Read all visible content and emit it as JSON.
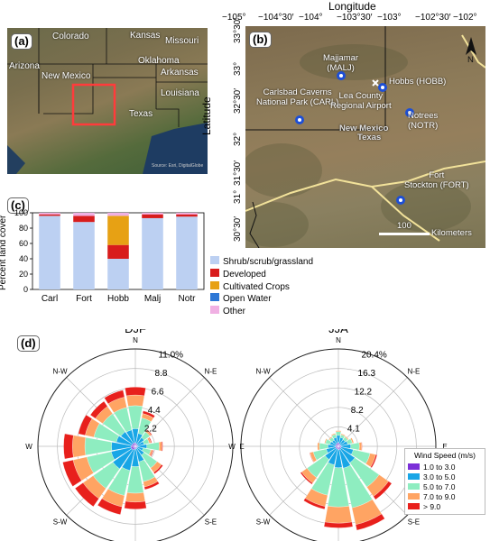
{
  "panel_a": {
    "label": "(a)",
    "states": [
      "Colorado",
      "Kansas",
      "Missouri",
      "Arizona",
      "Oklahoma",
      "Arkansas",
      "New Mexico",
      "Louisiana",
      "Texas"
    ],
    "credit": "Source: Esri, DigitalGlobe"
  },
  "panel_b": {
    "label": "(b)",
    "title": "Longitude",
    "ylabel": "Latitude",
    "lon_ticks": [
      "−105°",
      "−104°30′",
      "−104°",
      "−103°30′",
      "−103°",
      "−102°30′",
      "−102°"
    ],
    "lat_ticks": [
      "33°30′",
      "33°",
      "32°30′",
      "32°",
      "31°30′",
      "31°",
      "30°30′"
    ],
    "sites": [
      {
        "name": "Majjamar",
        "code": "(MALJ)"
      },
      {
        "name": "Hobbs (HOBB)",
        "code": ""
      },
      {
        "name": "Carlsbad Caverns",
        "code": "National Park (CARL)"
      },
      {
        "name": "Lea County",
        "code": "Regional Airport"
      },
      {
        "name": "Notrees",
        "code": "(NOTR)"
      },
      {
        "name": "Fort",
        "code": "Stockton (FORT)"
      }
    ],
    "border_labels": [
      "New Mexico",
      "Texas"
    ],
    "scale": {
      "value": "100",
      "unit": "Kilometers"
    },
    "north": "N"
  },
  "panel_c": {
    "label": "(c)",
    "ylabel": "Percent land cover",
    "colors": {
      "shrub": "#bcd0f2",
      "developed": "#d81c1c",
      "crops": "#e7a114",
      "water": "#2d77d6",
      "other": "#f0b0e3"
    },
    "legend": [
      "Shrub/scrub/grassland",
      "Developed",
      "Cultivated Crops",
      "Open Water",
      "Other"
    ]
  },
  "chart_data": {
    "type": "bar",
    "categories": [
      "Carl",
      "Fort",
      "Hobb",
      "Malj",
      "Notr"
    ],
    "ylim": [
      0,
      100
    ],
    "yticks": [
      "0",
      "20",
      "40",
      "60",
      "80",
      "100"
    ],
    "series": [
      {
        "name": "Shrub/scrub/grassland",
        "values": [
          96,
          88,
          40,
          93,
          95
        ]
      },
      {
        "name": "Developed",
        "values": [
          2,
          8,
          18,
          5,
          3
        ]
      },
      {
        "name": "Cultivated Crops",
        "values": [
          0,
          0,
          38,
          0,
          0
        ]
      },
      {
        "name": "Open Water",
        "values": [
          0,
          0,
          0,
          0,
          0
        ]
      },
      {
        "name": "Other",
        "values": [
          2,
          4,
          4,
          2,
          2
        ]
      }
    ]
  },
  "panel_d": {
    "label": "(d)",
    "roses": [
      {
        "title": "DJF",
        "rings": [
          "2.2",
          "4.4",
          "6.6",
          "8.8",
          "11.0%"
        ]
      },
      {
        "title": "JJA",
        "rings": [
          "4.1",
          "8.2",
          "12.2",
          "16.3",
          "20.4%"
        ]
      }
    ],
    "directions": [
      "N",
      "N-E",
      "E",
      "S-E",
      "S",
      "S-W",
      "W",
      "N-W"
    ],
    "legend_title": "Wind Speed (m/s)",
    "legend": [
      "1.0 to 3.0",
      "3.0 to 5.0",
      "5.0 to 7.0",
      "7.0 to 9.0",
      "> 9.0"
    ],
    "speed_colors": [
      "#7b2fd8",
      "#18a6e6",
      "#8eedc0",
      "#ffa463",
      "#e8201c"
    ]
  }
}
